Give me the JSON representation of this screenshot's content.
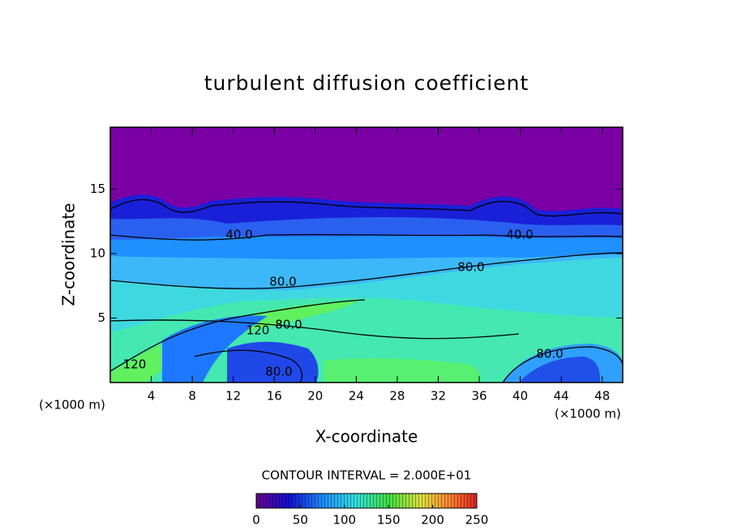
{
  "chart_data": {
    "type": "contour",
    "title": "turbulent diffusion coefficient",
    "x_label": "X-coordinate",
    "y_label": "Z-coordinate",
    "x_unit": "(×1000 m)",
    "y_unit": "(×1000 m)",
    "xlim": [
      0,
      50
    ],
    "xticks": [
      4,
      8,
      12,
      16,
      20,
      24,
      28,
      32,
      36,
      40,
      44,
      48
    ],
    "ylim": [
      0,
      19.8
    ],
    "yticks": [
      5,
      10,
      15
    ],
    "contour_interval": "CONTOUR INTERVAL = 2.000E+01",
    "contour_labels": [
      {
        "value": 40,
        "label": "40.0"
      },
      {
        "value": 40,
        "label": "40.0"
      },
      {
        "value": 80,
        "label": "80.0"
      },
      {
        "value": 80,
        "label": "80.0"
      },
      {
        "value": 120,
        "label": "120"
      },
      {
        "value": 80,
        "label": "80.0"
      },
      {
        "value": 80,
        "label": "80.0"
      },
      {
        "value": 80,
        "label": "80.0"
      },
      {
        "value": 120,
        "label": "120"
      }
    ],
    "colorbar": {
      "lim": [
        0,
        250
      ],
      "ticks": [
        0,
        50,
        100,
        150,
        200,
        250
      ]
    }
  }
}
